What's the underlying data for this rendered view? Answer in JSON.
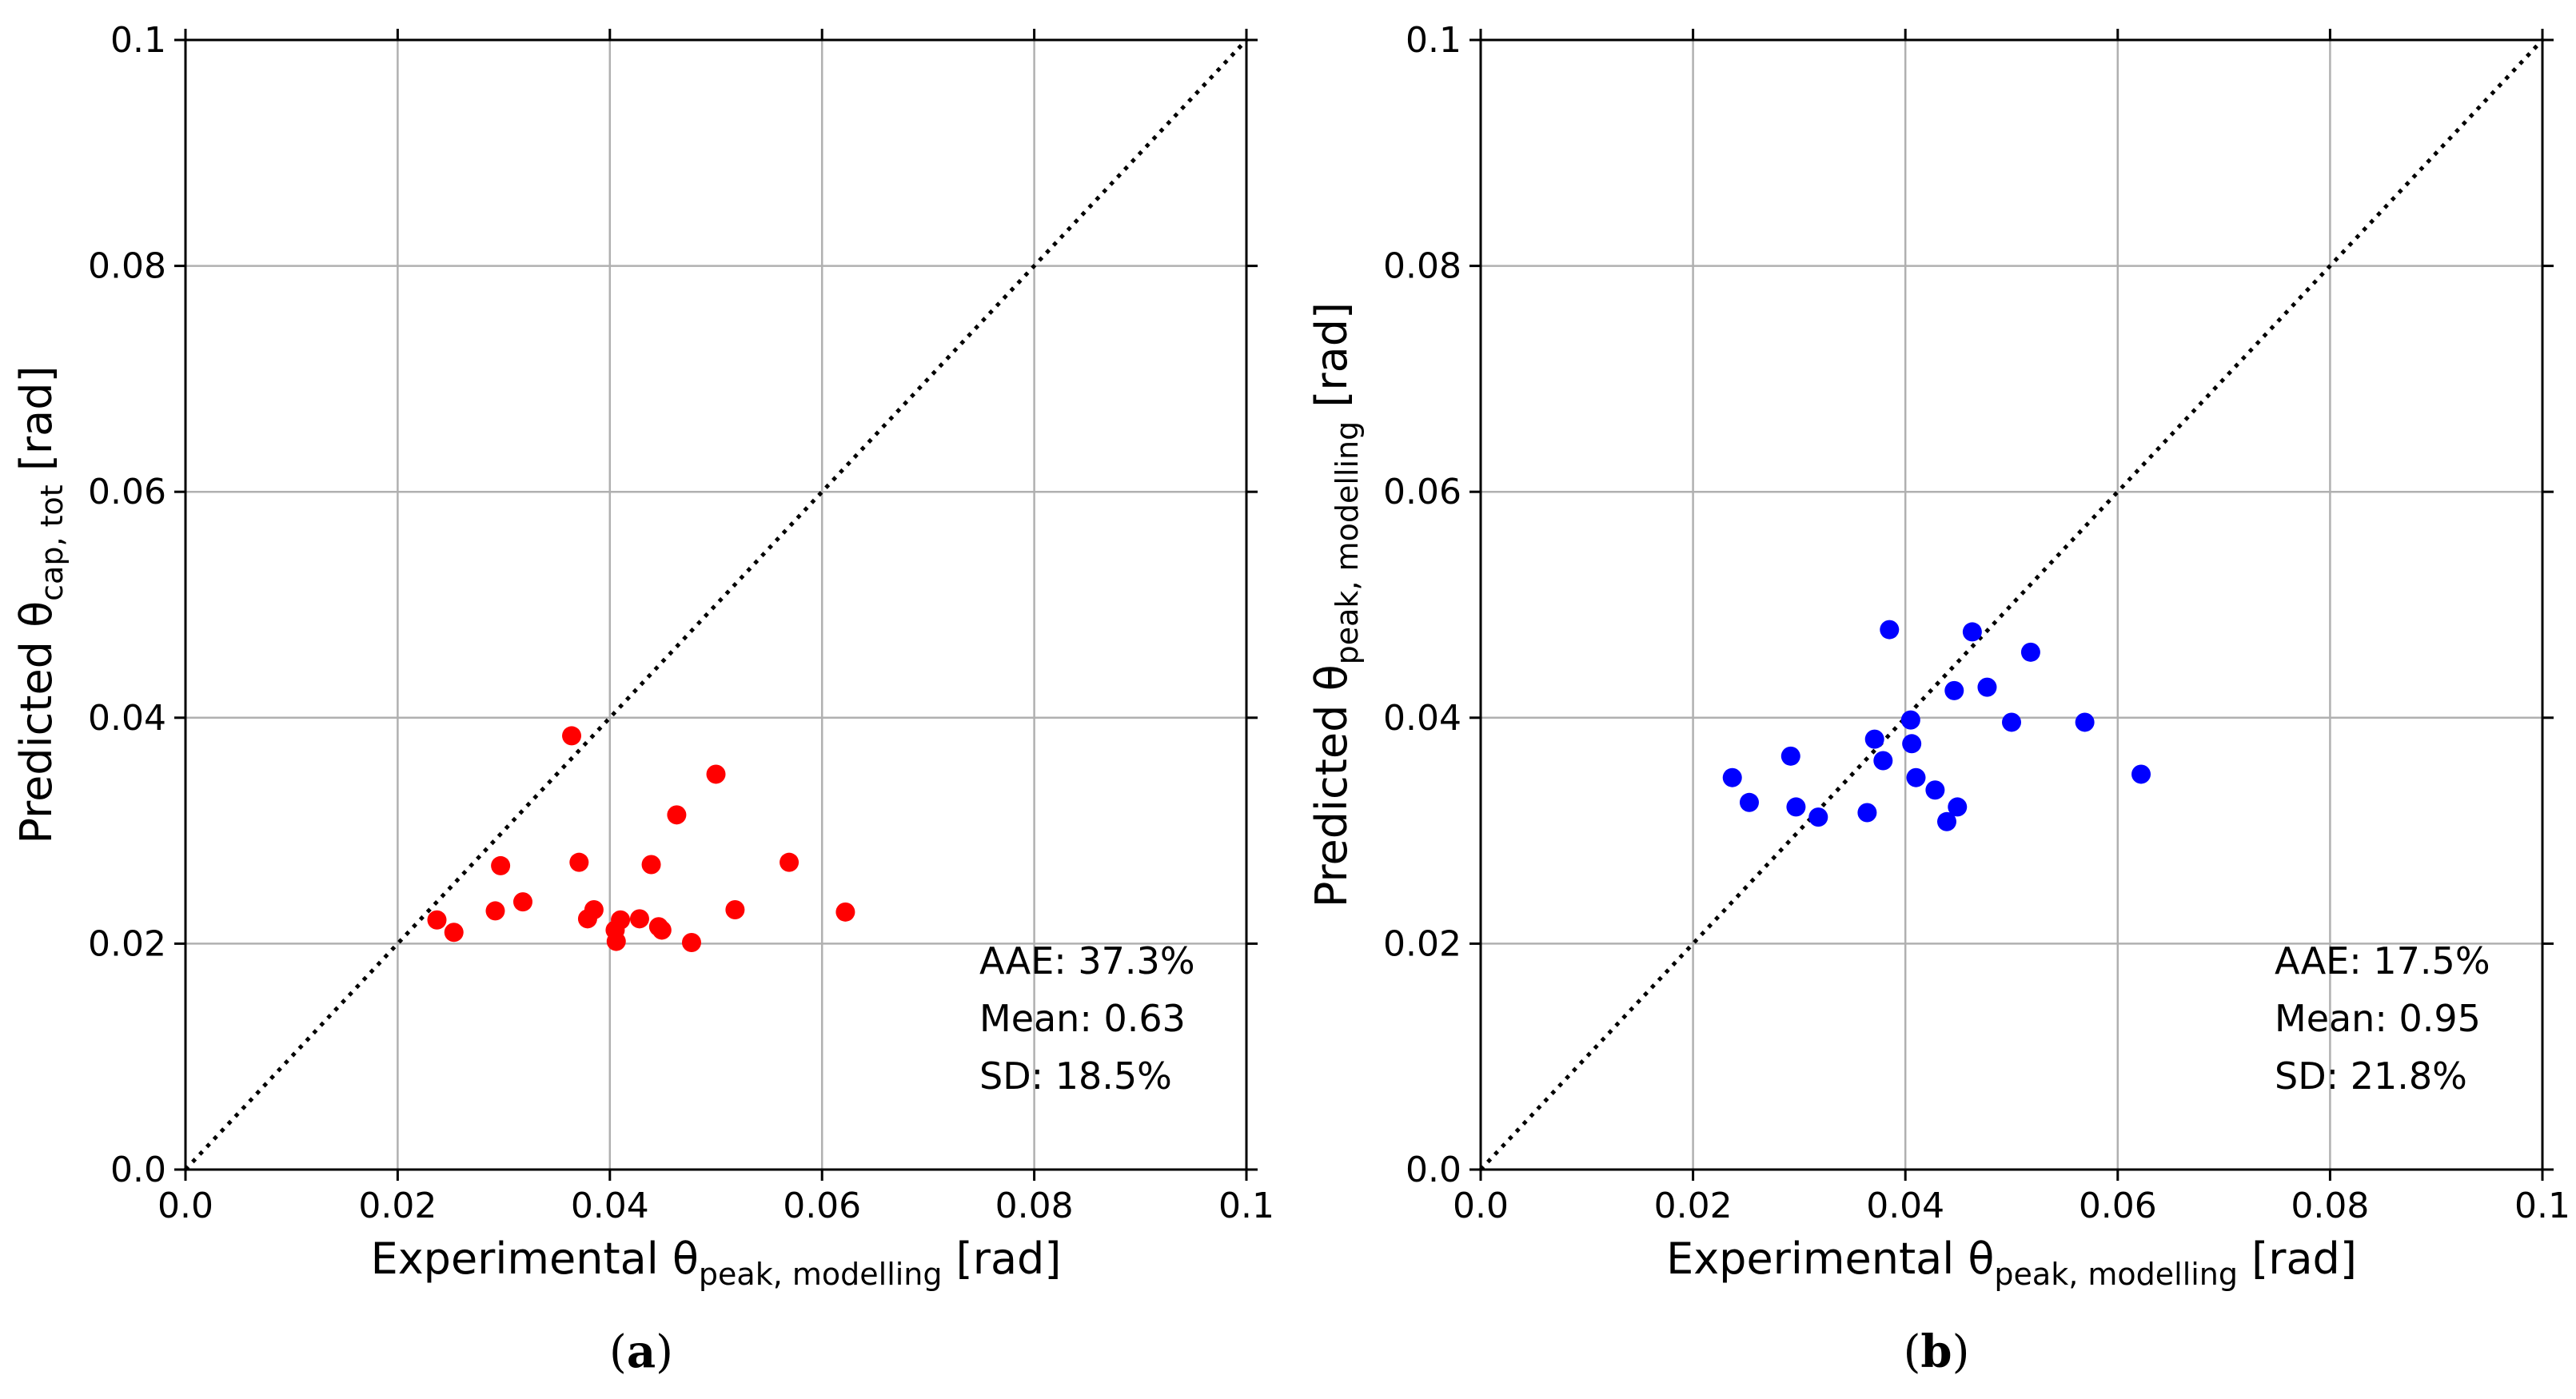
{
  "chart_data": [
    {
      "type": "scatter",
      "panel_label": "a",
      "xlabel": {
        "main": "Experimental θ",
        "sub": "peak, modelling",
        "unit": " [rad]"
      },
      "ylabel": {
        "main": "Predicted θ",
        "sub": "cap, tot",
        "unit": " [rad]"
      },
      "xlim": [
        0,
        0.1
      ],
      "ylim": [
        0,
        0.1
      ],
      "xticks": [
        "0.0",
        "0.02",
        "0.04",
        "0.06",
        "0.08",
        "0.1"
      ],
      "yticks": [
        "0.0",
        "0.02",
        "0.04",
        "0.06",
        "0.08",
        "0.1"
      ],
      "grid": true,
      "reference_line": "y = x",
      "color": "#ff0000",
      "points": [
        [
          0.0237,
          0.0221
        ],
        [
          0.0253,
          0.021
        ],
        [
          0.0292,
          0.0229
        ],
        [
          0.0297,
          0.0269
        ],
        [
          0.0318,
          0.0237
        ],
        [
          0.0364,
          0.0384
        ],
        [
          0.0371,
          0.0272
        ],
        [
          0.0379,
          0.0222
        ],
        [
          0.0385,
          0.023
        ],
        [
          0.0405,
          0.0212
        ],
        [
          0.0406,
          0.0202
        ],
        [
          0.041,
          0.0221
        ],
        [
          0.0428,
          0.0222
        ],
        [
          0.0439,
          0.027
        ],
        [
          0.0446,
          0.0215
        ],
        [
          0.0449,
          0.0212
        ],
        [
          0.0463,
          0.0314
        ],
        [
          0.0477,
          0.0201
        ],
        [
          0.05,
          0.035
        ],
        [
          0.0518,
          0.023
        ],
        [
          0.0569,
          0.0272
        ],
        [
          0.0622,
          0.0228
        ]
      ],
      "stats": [
        "AAE: 37.3%",
        "Mean: 0.63",
        "SD: 18.5%"
      ]
    },
    {
      "type": "scatter",
      "panel_label": "b",
      "xlabel": {
        "main": "Experimental θ",
        "sub": "peak, modelling",
        "unit": " [rad]"
      },
      "ylabel": {
        "main": "Predicted θ",
        "sub": "peak, modelling",
        "unit": " [rad]"
      },
      "xlim": [
        0,
        0.1
      ],
      "ylim": [
        0,
        0.1
      ],
      "xticks": [
        "0.0",
        "0.02",
        "0.04",
        "0.06",
        "0.08",
        "0.1"
      ],
      "yticks": [
        "0.0",
        "0.02",
        "0.04",
        "0.06",
        "0.08",
        "0.1"
      ],
      "grid": true,
      "reference_line": "y = x",
      "color": "#0000ff",
      "points": [
        [
          0.0237,
          0.0347
        ],
        [
          0.0253,
          0.0325
        ],
        [
          0.0292,
          0.0366
        ],
        [
          0.0297,
          0.0321
        ],
        [
          0.0318,
          0.0312
        ],
        [
          0.0364,
          0.0316
        ],
        [
          0.0371,
          0.0381
        ],
        [
          0.0379,
          0.0362
        ],
        [
          0.0385,
          0.0478
        ],
        [
          0.0405,
          0.0398
        ],
        [
          0.0406,
          0.0377
        ],
        [
          0.041,
          0.0347
        ],
        [
          0.0428,
          0.0336
        ],
        [
          0.0439,
          0.0308
        ],
        [
          0.0446,
          0.0424
        ],
        [
          0.0449,
          0.0321
        ],
        [
          0.0463,
          0.0476
        ],
        [
          0.0477,
          0.0427
        ],
        [
          0.05,
          0.0396
        ],
        [
          0.0518,
          0.0458
        ],
        [
          0.0569,
          0.0396
        ],
        [
          0.0622,
          0.035
        ]
      ],
      "stats": [
        "AAE: 17.5%",
        "Mean: 0.95",
        "SD: 21.8%"
      ]
    }
  ]
}
